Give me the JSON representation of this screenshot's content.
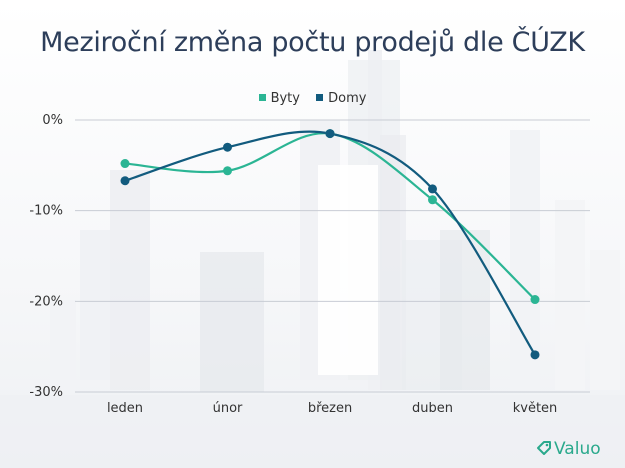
{
  "title": "Meziroční změna počtu prodejů dle ČÚZK",
  "colors": {
    "byty": "#2bb594",
    "domy": "#125b7e",
    "grid": "#c8ccd4",
    "title": "#2d3e5a",
    "brand": "#2aa98c"
  },
  "brand": {
    "name": "Valuo",
    "icon": "tag-icon"
  },
  "chart_data": {
    "type": "line",
    "categories": [
      "leden",
      "únor",
      "březen",
      "duben",
      "květen"
    ],
    "series": [
      {
        "name": "Byty",
        "values": [
          -4.8,
          -5.6,
          -1.5,
          -8.8,
          -19.8
        ]
      },
      {
        "name": "Domy",
        "values": [
          -6.7,
          -3.0,
          -1.5,
          -7.6,
          -25.9
        ]
      }
    ],
    "yticks": [
      0,
      -10,
      -20,
      -30
    ],
    "ytick_labels": [
      "0%",
      "-10%",
      "-20%",
      "-30%"
    ],
    "ylim": [
      -30,
      0
    ],
    "grid": true,
    "legend_position": "top-center",
    "smooth": true
  }
}
